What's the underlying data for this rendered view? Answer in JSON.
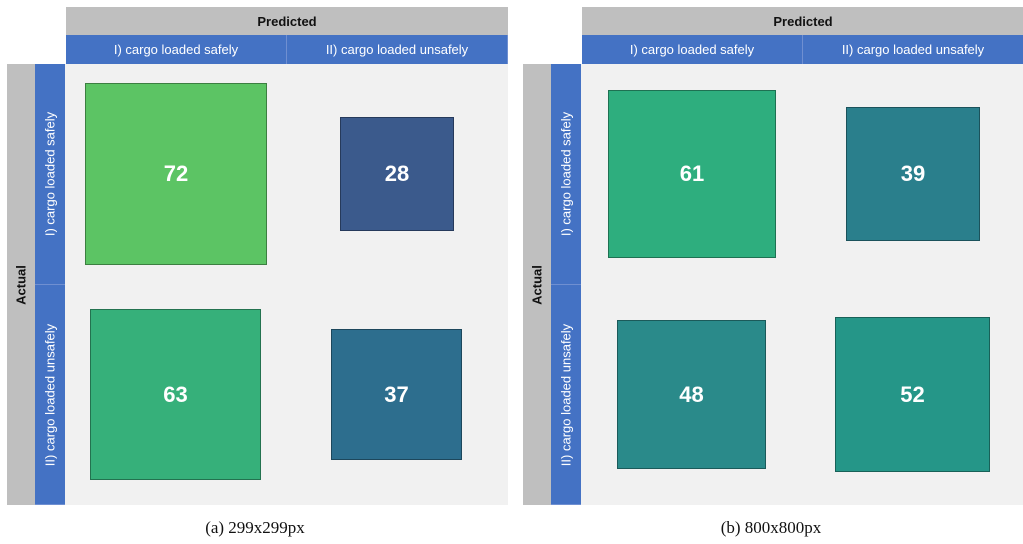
{
  "chart_data": [
    {
      "type": "heatmap",
      "caption": "(a) 299x299px",
      "x_title": "Predicted",
      "y_title": "Actual",
      "x_categories": [
        "I) cargo loaded safely",
        "II) cargo loaded unsafely"
      ],
      "y_categories": [
        "I) cargo loaded safely",
        "II) cargo loaded unsafely"
      ],
      "values": [
        [
          72,
          28
        ],
        [
          63,
          37
        ]
      ],
      "colors": [
        [
          "#5cc464",
          "#3b5a8c"
        ],
        [
          "#36b07a",
          "#2d6e8e"
        ]
      ]
    },
    {
      "type": "heatmap",
      "caption": "(b) 800x800px",
      "x_title": "Predicted",
      "y_title": "Actual",
      "x_categories": [
        "I) cargo loaded safely",
        "II) cargo loaded unsafely"
      ],
      "y_categories": [
        "I) cargo loaded safely",
        "II) cargo loaded unsafely"
      ],
      "values": [
        [
          61,
          39
        ],
        [
          48,
          52
        ]
      ],
      "colors": [
        [
          "#2eae7e",
          "#2a7f8c"
        ],
        [
          "#2a8a8a",
          "#259688"
        ]
      ]
    }
  ]
}
